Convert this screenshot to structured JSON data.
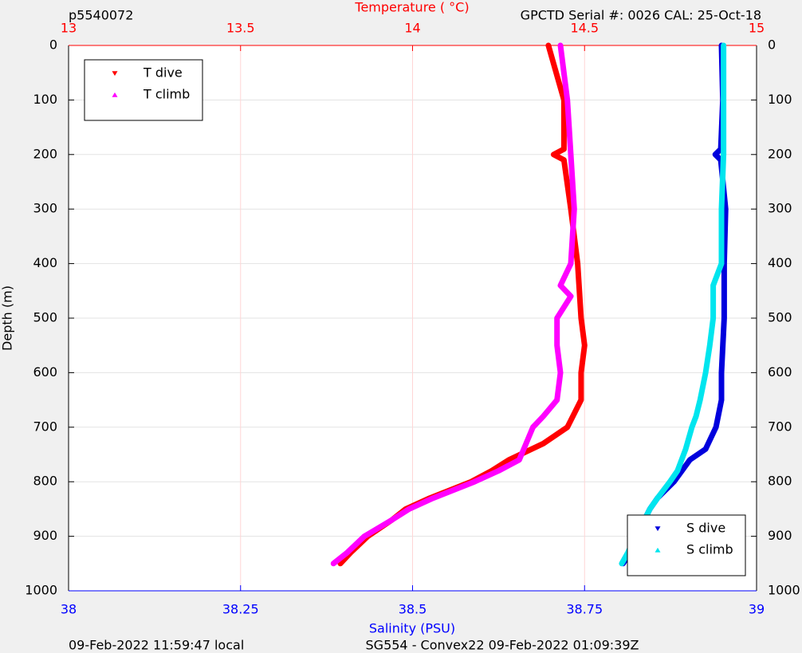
{
  "chart_data": {
    "type": "profile",
    "title": "p5540072",
    "subtitle": "GPCTD Serial #: 0026 CAL: 25-Oct-18",
    "footer_left": "09-Feb-2022 11:59:47 local",
    "footer_center": "SG554 - Convex22 09-Feb-2022 01:09:39Z",
    "xlabel": "Salinity (PSU)",
    "x2label": "Temperature (    °C)",
    "ylabel": "Depth (m)",
    "xlim": [
      38,
      39
    ],
    "xticks": [
      38,
      38.25,
      38.5,
      38.75,
      39
    ],
    "x_color": "#0000ff",
    "x2lim": [
      13,
      15
    ],
    "x2ticks": [
      13,
      13.5,
      14,
      14.5,
      15
    ],
    "x2_color": "#ff0000",
    "ylim": [
      0,
      1000
    ],
    "y_inverted": true,
    "yticks": [
      0,
      100,
      200,
      300,
      400,
      500,
      600,
      700,
      800,
      900,
      1000
    ],
    "grid": true,
    "legends": [
      {
        "axis": "x2",
        "loc": "upper left"
      },
      {
        "axis": "x",
        "loc": "lower right"
      }
    ],
    "series": [
      {
        "name": "T dive",
        "color": "#ff0000",
        "marker": "v",
        "axis": "x2",
        "depth": [
          0,
          100,
          190,
          200,
          210,
          300,
          400,
          500,
          550,
          600,
          650,
          700,
          730,
          760,
          780,
          800,
          830,
          850,
          870,
          900,
          930,
          950
        ],
        "values": [
          14.395,
          14.44,
          14.44,
          14.41,
          14.44,
          14.46,
          14.48,
          14.49,
          14.5,
          14.49,
          14.49,
          14.45,
          14.38,
          14.28,
          14.23,
          14.17,
          14.05,
          13.98,
          13.94,
          13.87,
          13.82,
          13.79
        ]
      },
      {
        "name": "T climb",
        "color": "#ff00ff",
        "marker": "^",
        "axis": "x2",
        "depth": [
          0,
          100,
          200,
          300,
          400,
          440,
          460,
          500,
          550,
          600,
          650,
          680,
          700,
          730,
          760,
          780,
          800,
          830,
          850,
          870,
          900,
          930,
          950
        ],
        "values": [
          14.43,
          14.45,
          14.46,
          14.47,
          14.46,
          14.43,
          14.46,
          14.42,
          14.42,
          14.43,
          14.42,
          14.38,
          14.35,
          14.33,
          14.31,
          14.25,
          14.18,
          14.06,
          13.99,
          13.94,
          13.86,
          13.81,
          13.77
        ]
      },
      {
        "name": "S dive",
        "color": "#0000dd",
        "marker": "v",
        "axis": "x",
        "depth": [
          0,
          100,
          190,
          200,
          210,
          300,
          400,
          500,
          600,
          650,
          700,
          740,
          760,
          800,
          830,
          850,
          870,
          900,
          930,
          950
        ],
        "values": [
          38.949,
          38.951,
          38.948,
          38.94,
          38.948,
          38.955,
          38.953,
          38.953,
          38.949,
          38.949,
          38.941,
          38.926,
          38.903,
          38.88,
          38.856,
          38.845,
          38.837,
          38.827,
          38.816,
          38.806
        ]
      },
      {
        "name": "S climb",
        "color": "#00e5ee",
        "marker": "^",
        "axis": "x",
        "depth": [
          0,
          100,
          200,
          300,
          400,
          440,
          500,
          550,
          600,
          650,
          680,
          700,
          740,
          780,
          800,
          830,
          850,
          870,
          900,
          930,
          950
        ],
        "values": [
          38.952,
          38.952,
          38.952,
          38.949,
          38.949,
          38.937,
          38.937,
          38.932,
          38.926,
          38.918,
          38.912,
          38.906,
          38.897,
          38.885,
          38.874,
          38.856,
          38.845,
          38.837,
          38.824,
          38.813,
          38.804
        ]
      }
    ]
  }
}
